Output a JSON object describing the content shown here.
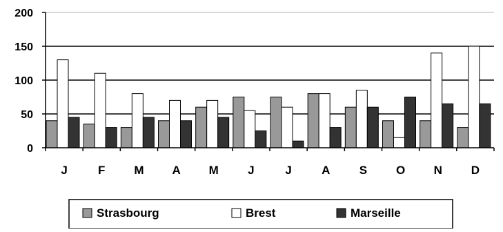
{
  "chart_data": {
    "type": "bar",
    "title": "",
    "xlabel": "",
    "ylabel": "",
    "categories": [
      "J",
      "F",
      "M",
      "A",
      "M",
      "J",
      "J",
      "A",
      "S",
      "O",
      "N",
      "D"
    ],
    "series": [
      {
        "name": "Strasbourg",
        "color": "#999999",
        "values": [
          40,
          35,
          30,
          40,
          60,
          75,
          75,
          80,
          60,
          40,
          40,
          30
        ]
      },
      {
        "name": "Brest",
        "color": "#ffffff",
        "values": [
          130,
          110,
          80,
          70,
          70,
          55,
          60,
          80,
          85,
          15,
          140,
          150
        ]
      },
      {
        "name": "Marseille",
        "color": "#333333",
        "values": [
          45,
          30,
          45,
          40,
          45,
          25,
          10,
          30,
          60,
          75,
          65,
          65
        ]
      }
    ],
    "ylim": [
      0,
      200
    ],
    "yticks": [
      0,
      50,
      100,
      150,
      200
    ],
    "grid": true,
    "legend": "bottom"
  }
}
